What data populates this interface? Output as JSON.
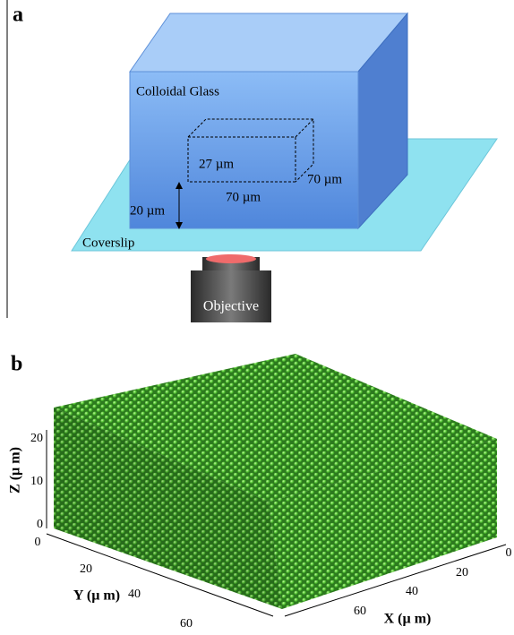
{
  "panel_a": {
    "label": "a",
    "box_label": "Colloidal Glass",
    "depth": "27 µm",
    "width_right": "70 µm",
    "width_bottom": "70 µm",
    "offset": "20 µm",
    "coverslip": "Coverslip",
    "objective": "Objective"
  },
  "panel_b": {
    "label": "b",
    "z_axis": {
      "label": "Z (µ m)",
      "ticks": [
        "0",
        "10",
        "20"
      ]
    },
    "y_axis": {
      "label": "Y (µ m)",
      "ticks": [
        "0",
        "20",
        "40",
        "60"
      ]
    },
    "x_axis": {
      "label": "X (µ m)",
      "ticks": [
        "0",
        "20",
        "40",
        "60"
      ]
    }
  }
}
